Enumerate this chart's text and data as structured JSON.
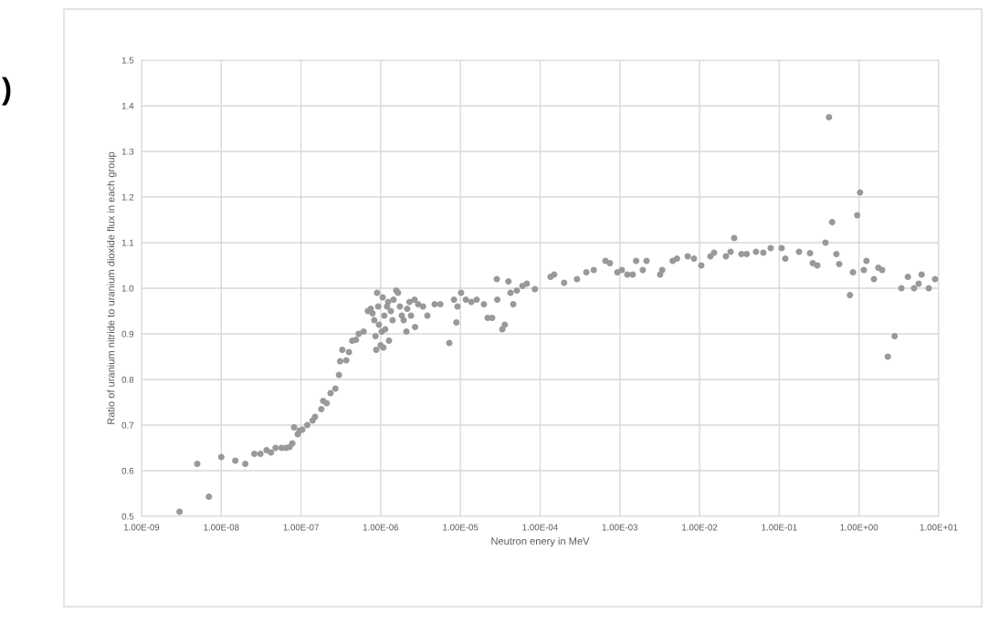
{
  "chart_data": {
    "type": "scatter",
    "xlabel": "Neutron enery in MeV",
    "ylabel": "Ratio of uranium nitride to uranium dioxide flux in each group",
    "annotations": [
      ")"
    ],
    "log": "x",
    "grid": true,
    "marker": "circle",
    "xlim": [
      1e-09,
      10
    ],
    "ylim": [
      0.5,
      1.5
    ],
    "xticks": [
      {
        "value": 1e-09,
        "label": "1.00E-09"
      },
      {
        "value": 1e-08,
        "label": "1.00E-08"
      },
      {
        "value": 1e-07,
        "label": "1.00E-07"
      },
      {
        "value": 1e-06,
        "label": "1.00E-06"
      },
      {
        "value": 1e-05,
        "label": "1.00E-05"
      },
      {
        "value": 0.0001,
        "label": "1.00E-04"
      },
      {
        "value": 0.001,
        "label": "1.00E-03"
      },
      {
        "value": 0.01,
        "label": "1.00E-02"
      },
      {
        "value": 0.1,
        "label": "1.00E-01"
      },
      {
        "value": 1,
        "label": "1.00E+00"
      },
      {
        "value": 10,
        "label": "1.00E+01"
      }
    ],
    "yticks": [
      {
        "value": 0.5,
        "label": "0.5"
      },
      {
        "value": 0.6,
        "label": "0.6"
      },
      {
        "value": 0.7,
        "label": "0.7"
      },
      {
        "value": 0.8,
        "label": "0.8"
      },
      {
        "value": 0.9,
        "label": "0.9"
      },
      {
        "value": 1.0,
        "label": "1.0"
      },
      {
        "value": 1.1,
        "label": "1.1"
      },
      {
        "value": 1.2,
        "label": "1.2"
      },
      {
        "value": 1.3,
        "label": "1.3"
      },
      {
        "value": 1.4,
        "label": "1.4"
      },
      {
        "value": 1.5,
        "label": "1.5"
      }
    ],
    "series": [
      {
        "color": "#999999",
        "x": [
          3e-09,
          5e-09,
          7e-09,
          1e-08,
          1.5e-08,
          2e-08,
          2.6e-08,
          3.1e-08,
          3.7e-08,
          4.2e-08,
          4.8e-08,
          5.7e-08,
          6.5e-08,
          7.2e-08,
          7.8e-08,
          8.2e-08,
          9.1e-08,
          9.6e-08,
          1.04e-07,
          1.2e-07,
          1.4e-07,
          1.5e-07,
          1.8e-07,
          1.9e-07,
          2.1e-07,
          2.35e-07,
          2.7e-07,
          3e-07,
          3.1e-07,
          3.3e-07,
          3.7e-07,
          4e-07,
          4.4e-07,
          4.9e-07,
          5.3e-07,
          6.1e-07,
          6.9e-07,
          7.5e-07,
          7.9e-07,
          8.3e-07,
          8.6e-07,
          8.8e-07,
          9e-07,
          9.3e-07,
          9.5e-07,
          1e-06,
          1.03e-06,
          1.06e-06,
          1.08e-06,
          1.11e-06,
          1.14e-06,
          1.2e-06,
          1.24e-06,
          1.27e-06,
          1.34e-06,
          1.41e-06,
          1.45e-06,
          1.57e-06,
          1.65e-06,
          1.74e-06,
          1.84e-06,
          1.94e-06,
          2.1e-06,
          2.15e-06,
          2.3e-06,
          2.4e-06,
          2.66e-06,
          2.7e-06,
          2.95e-06,
          3.4e-06,
          3.85e-06,
          4.75e-06,
          5.6e-06,
          7.25e-06,
          8.3e-06,
          8.9e-06,
          9.2e-06,
          1.02e-05,
          1.17e-05,
          1.37e-05,
          1.6e-05,
          1.97e-05,
          2.2e-05,
          2.5e-05,
          2.86e-05,
          2.9e-05,
          3.35e-05,
          3.6e-05,
          4e-05,
          4.25e-05,
          4.6e-05,
          5.1e-05,
          6e-05,
          6.8e-05,
          8.6e-05,
          0.000135,
          0.00015,
          0.0002,
          0.00029,
          0.00038,
          0.00047,
          0.00066,
          0.00075,
          0.00093,
          0.00106,
          0.00124,
          0.00145,
          0.0016,
          0.00194,
          0.00216,
          0.0032,
          0.0034,
          0.0046,
          0.0052,
          0.0071,
          0.0085,
          0.0105,
          0.0137,
          0.0152,
          0.0214,
          0.0245,
          0.0272,
          0.0335,
          0.039,
          0.051,
          0.063,
          0.078,
          0.107,
          0.119,
          0.177,
          0.243,
          0.263,
          0.3,
          0.38,
          0.42,
          0.46,
          0.52,
          0.565,
          0.77,
          0.84,
          0.95,
          1.03,
          1.15,
          1.24,
          1.54,
          1.75,
          1.95,
          2.3,
          2.8,
          3.4,
          4.1,
          4.9,
          5.6,
          6.1,
          7.5,
          9.0
        ],
        "values": [
          0.51,
          0.615,
          0.543,
          0.63,
          0.622,
          0.615,
          0.637,
          0.637,
          0.645,
          0.64,
          0.65,
          0.65,
          0.65,
          0.652,
          0.66,
          0.695,
          0.68,
          0.688,
          0.69,
          0.7,
          0.71,
          0.718,
          0.735,
          0.753,
          0.748,
          0.77,
          0.78,
          0.81,
          0.84,
          0.865,
          0.842,
          0.86,
          0.885,
          0.887,
          0.9,
          0.905,
          0.95,
          0.955,
          0.945,
          0.93,
          0.895,
          0.865,
          0.99,
          0.96,
          0.92,
          0.875,
          0.905,
          0.98,
          0.87,
          0.94,
          0.91,
          0.96,
          0.97,
          0.885,
          0.95,
          0.93,
          0.975,
          0.995,
          0.99,
          0.96,
          0.94,
          0.93,
          0.905,
          0.955,
          0.97,
          0.94,
          0.975,
          0.915,
          0.965,
          0.96,
          0.94,
          0.965,
          0.965,
          0.88,
          0.975,
          0.925,
          0.96,
          0.99,
          0.975,
          0.97,
          0.975,
          0.965,
          0.935,
          0.935,
          1.02,
          0.975,
          0.91,
          0.92,
          1.015,
          0.99,
          0.965,
          0.995,
          1.005,
          1.01,
          0.998,
          1.025,
          1.03,
          1.012,
          1.02,
          1.035,
          1.04,
          1.06,
          1.055,
          1.035,
          1.04,
          1.03,
          1.03,
          1.06,
          1.04,
          1.06,
          1.03,
          1.04,
          1.06,
          1.065,
          1.07,
          1.065,
          1.05,
          1.07,
          1.078,
          1.07,
          1.08,
          1.11,
          1.075,
          1.075,
          1.08,
          1.078,
          1.088,
          1.088,
          1.065,
          1.08,
          1.077,
          1.055,
          1.05,
          1.1,
          1.375,
          1.145,
          1.075,
          1.053,
          0.985,
          1.035,
          1.16,
          1.21,
          1.04,
          1.06,
          1.02,
          1.045,
          1.04,
          0.85,
          0.895,
          1.0,
          1.025,
          1.0,
          1.01,
          1.03,
          1.0,
          1.02
        ]
      }
    ]
  }
}
